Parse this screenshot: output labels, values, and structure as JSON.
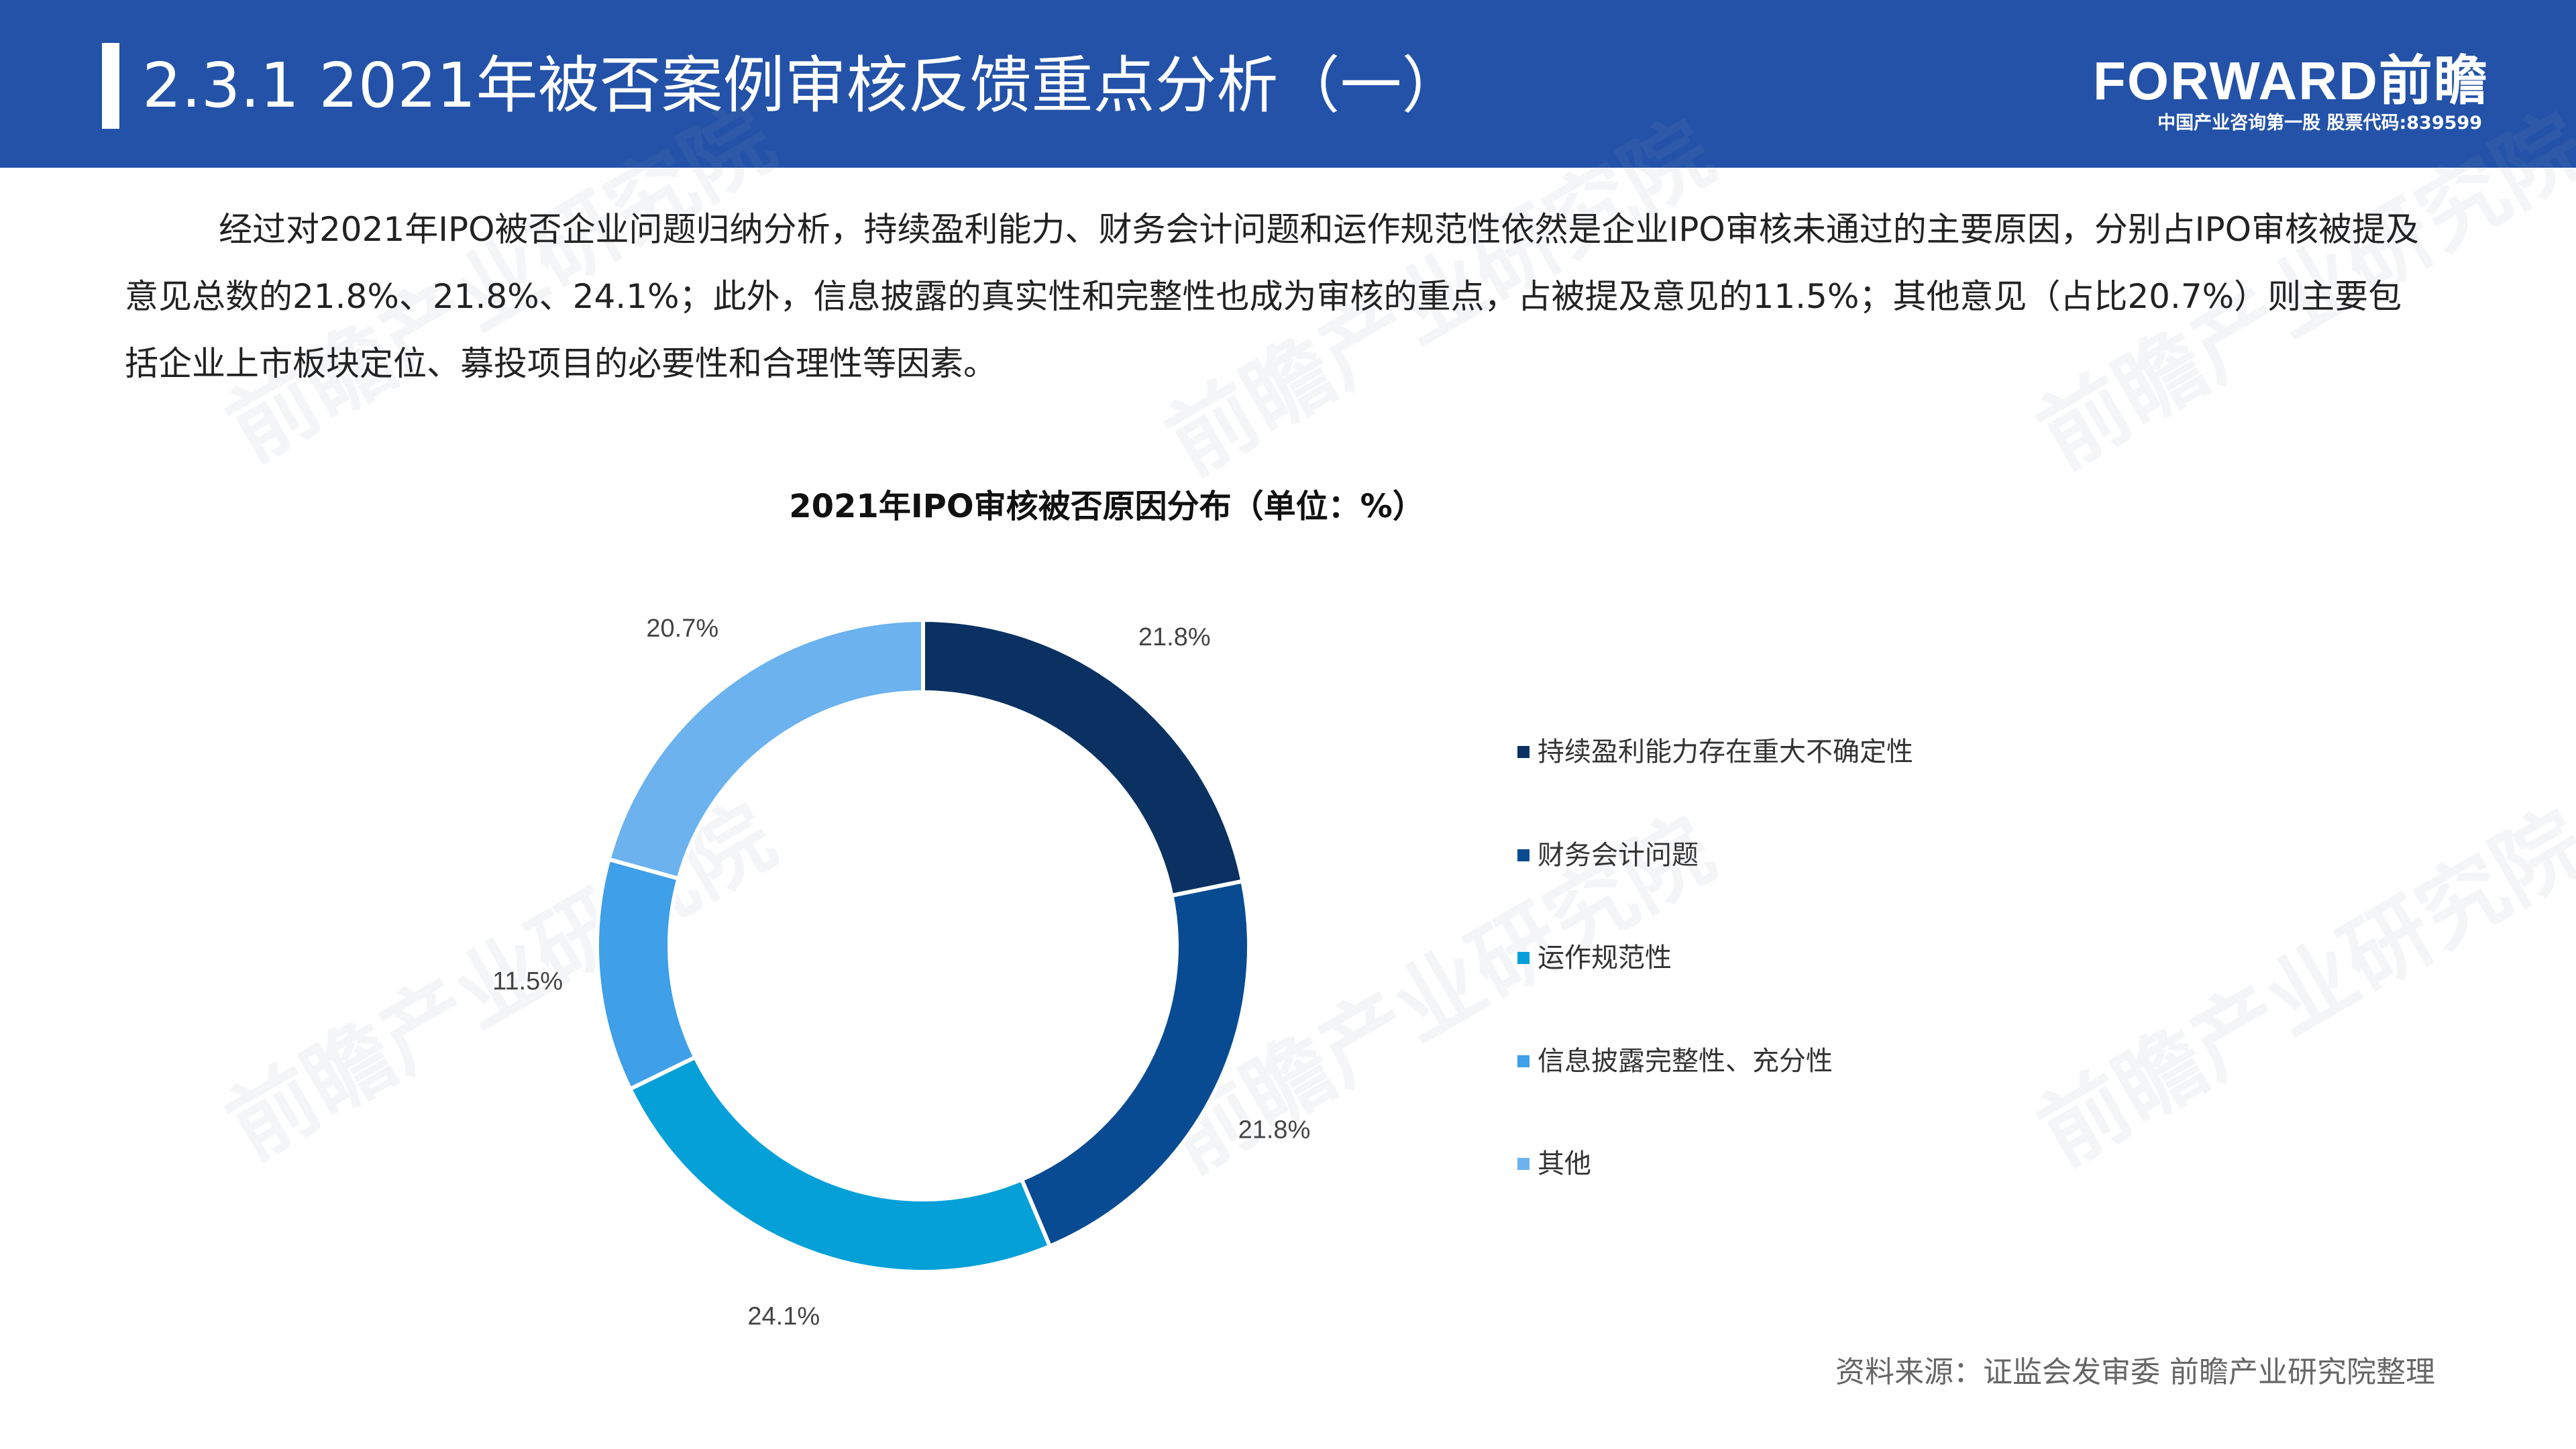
{
  "header": {
    "title": "2.3.1 2021年被否案例审核反馈重点分析（一）",
    "brand_logo": "FORWARD前瞻",
    "brand_sub": "中国产业咨询第一股 股票代码:839599"
  },
  "body": {
    "paragraph": "经过对2021年IPO被否企业问题归纳分析，持续盈利能力、财务会计问题和运作规范性依然是企业IPO审核未通过的主要原因，分别占IPO审核被提及意见总数的21.8%、21.8%、24.1%；此外，信息披露的真实性和完整性也成为审核的重点，占被提及意见的11.5%；其他意见（占比20.7%）则主要包括企业上市板块定位、募投项目的必要性和合理性等因素。"
  },
  "watermark": {
    "text": "前瞻产业研究院"
  },
  "chart_data": {
    "type": "pie",
    "variant": "donut",
    "title": "2021年IPO审核被否原因分布（单位：%）",
    "categories": [
      "持续盈利能力存在重大不确定性",
      "财务会计问题",
      "运作规范性",
      "信息披露完整性、充分性",
      "其他"
    ],
    "values": [
      21.8,
      21.8,
      24.1,
      11.5,
      20.7
    ],
    "data_labels": [
      "21.8%",
      "21.8%",
      "24.1%",
      "11.5%",
      "20.7%"
    ],
    "colors": [
      "#0a3161",
      "#094b92",
      "#06a0d8",
      "#3f9fe8",
      "#6bb2ef"
    ],
    "legend_position": "right"
  },
  "footer": {
    "source": "资料来源：证监会发审委 前瞻产业研究院整理"
  }
}
